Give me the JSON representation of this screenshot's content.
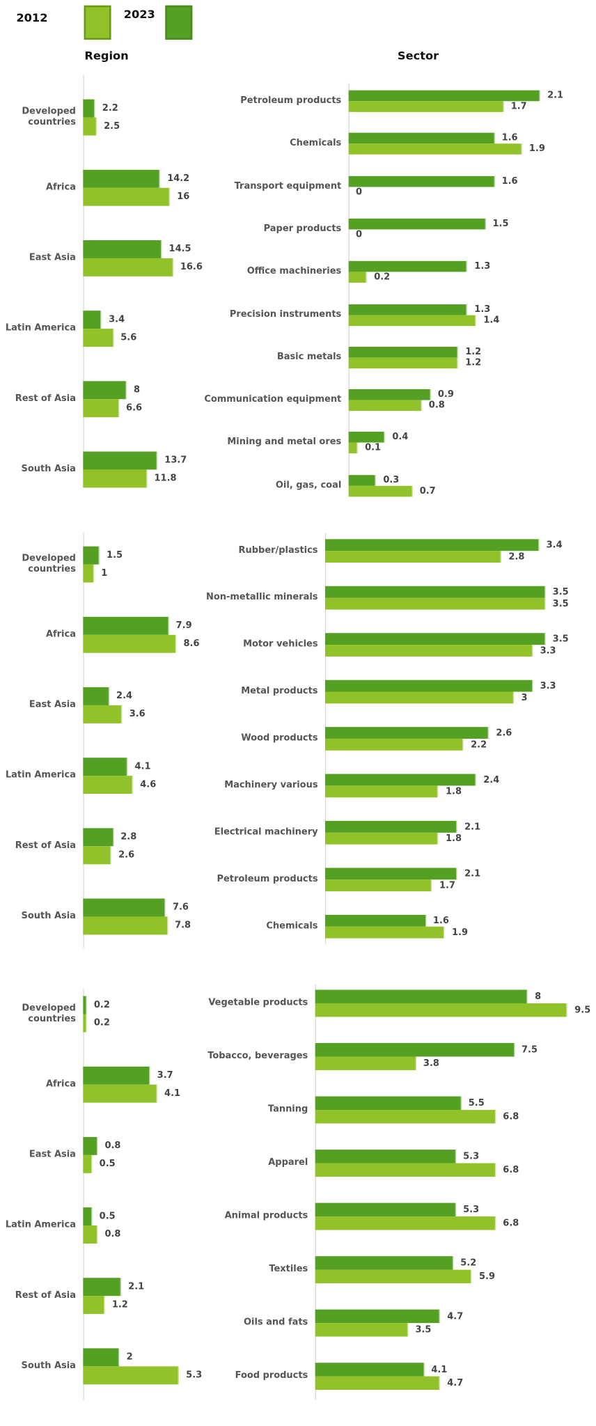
{
  "colors": {
    "y2012": "#92c22a",
    "y2023": "#53a023",
    "y2012_border": "#6a9a1a",
    "y2023_border": "#4a8a1f"
  },
  "legend": {
    "label_2012": "2012",
    "label_2023": "2023"
  },
  "titles": {
    "region": "Region",
    "sector": "Sector"
  },
  "chart_data": [
    {
      "type": "bar",
      "orientation": "horizontal",
      "group": "Region",
      "categories": [
        "Developed countries",
        "Africa",
        "East Asia",
        "Latin America",
        "Rest of Asia",
        "South Asia"
      ],
      "series": [
        {
          "name": "2023",
          "values": [
            2.2,
            14.2,
            14.5,
            3.4,
            8,
            13.7
          ]
        },
        {
          "name": "2012",
          "values": [
            2.5,
            16,
            16.6,
            5.6,
            6.6,
            11.8
          ]
        }
      ]
    },
    {
      "type": "bar",
      "orientation": "horizontal",
      "group": "Sector",
      "categories": [
        "Petroleum products",
        "Chemicals",
        "Transport equipment",
        "Paper products",
        "Office machineries",
        "Precision instruments",
        "Basic metals",
        "Communication equipment",
        "Mining and metal ores",
        "Oil, gas, coal"
      ],
      "series": [
        {
          "name": "2023",
          "values": [
            2.1,
            1.6,
            1.6,
            1.5,
            1.3,
            1.3,
            1.2,
            0.9,
            0.4,
            0.3
          ]
        },
        {
          "name": "2012",
          "values": [
            1.7,
            1.9,
            0,
            0,
            0.2,
            1.4,
            1.2,
            0.8,
            0.1,
            0.7
          ]
        }
      ]
    },
    {
      "type": "bar",
      "orientation": "horizontal",
      "group": "Region",
      "categories": [
        "Developed countries",
        "Africa",
        "East Asia",
        "Latin America",
        "Rest of Asia",
        "South Asia"
      ],
      "series": [
        {
          "name": "2023",
          "values": [
            1.5,
            7.9,
            2.4,
            4.1,
            2.8,
            7.6
          ]
        },
        {
          "name": "2012",
          "values": [
            1,
            8.6,
            3.6,
            4.6,
            2.6,
            7.8
          ]
        }
      ]
    },
    {
      "type": "bar",
      "orientation": "horizontal",
      "group": "Sector",
      "categories": [
        "Rubber/plastics",
        "Non-metallic minerals",
        "Motor vehicles",
        "Metal products",
        "Wood products",
        "Machinery various",
        "Electrical machinery",
        "Petroleum products",
        "Chemicals"
      ],
      "series": [
        {
          "name": "2023",
          "values": [
            3.4,
            3.5,
            3.5,
            3.3,
            2.6,
            2.4,
            2.1,
            2.1,
            1.6
          ]
        },
        {
          "name": "2012",
          "values": [
            2.8,
            3.5,
            3.3,
            3,
            2.2,
            1.8,
            1.8,
            1.7,
            1.9
          ]
        }
      ]
    },
    {
      "type": "bar",
      "orientation": "horizontal",
      "group": "Region",
      "categories": [
        "Developed countries",
        "Africa",
        "East Asia",
        "Latin America",
        "Rest of Asia",
        "South Asia"
      ],
      "series": [
        {
          "name": "2023",
          "values": [
            0.2,
            3.7,
            0.8,
            0.5,
            2.1,
            2
          ]
        },
        {
          "name": "2012",
          "values": [
            0.2,
            4.1,
            0.5,
            0.8,
            1.2,
            5.3
          ]
        }
      ]
    },
    {
      "type": "bar",
      "orientation": "horizontal",
      "group": "Sector",
      "categories": [
        "Vegetable products",
        "Tobacco, beverages",
        "Tanning",
        "Apparel",
        "Animal products",
        "Textiles",
        "Oils and fats",
        "Food products"
      ],
      "series": [
        {
          "name": "2023",
          "values": [
            8,
            7.5,
            5.5,
            5.3,
            5.3,
            5.2,
            4.7,
            4.1
          ]
        },
        {
          "name": "2012",
          "values": [
            9.5,
            3.8,
            6.8,
            6.8,
            6.8,
            5.9,
            3.5,
            4.7
          ]
        }
      ]
    }
  ]
}
